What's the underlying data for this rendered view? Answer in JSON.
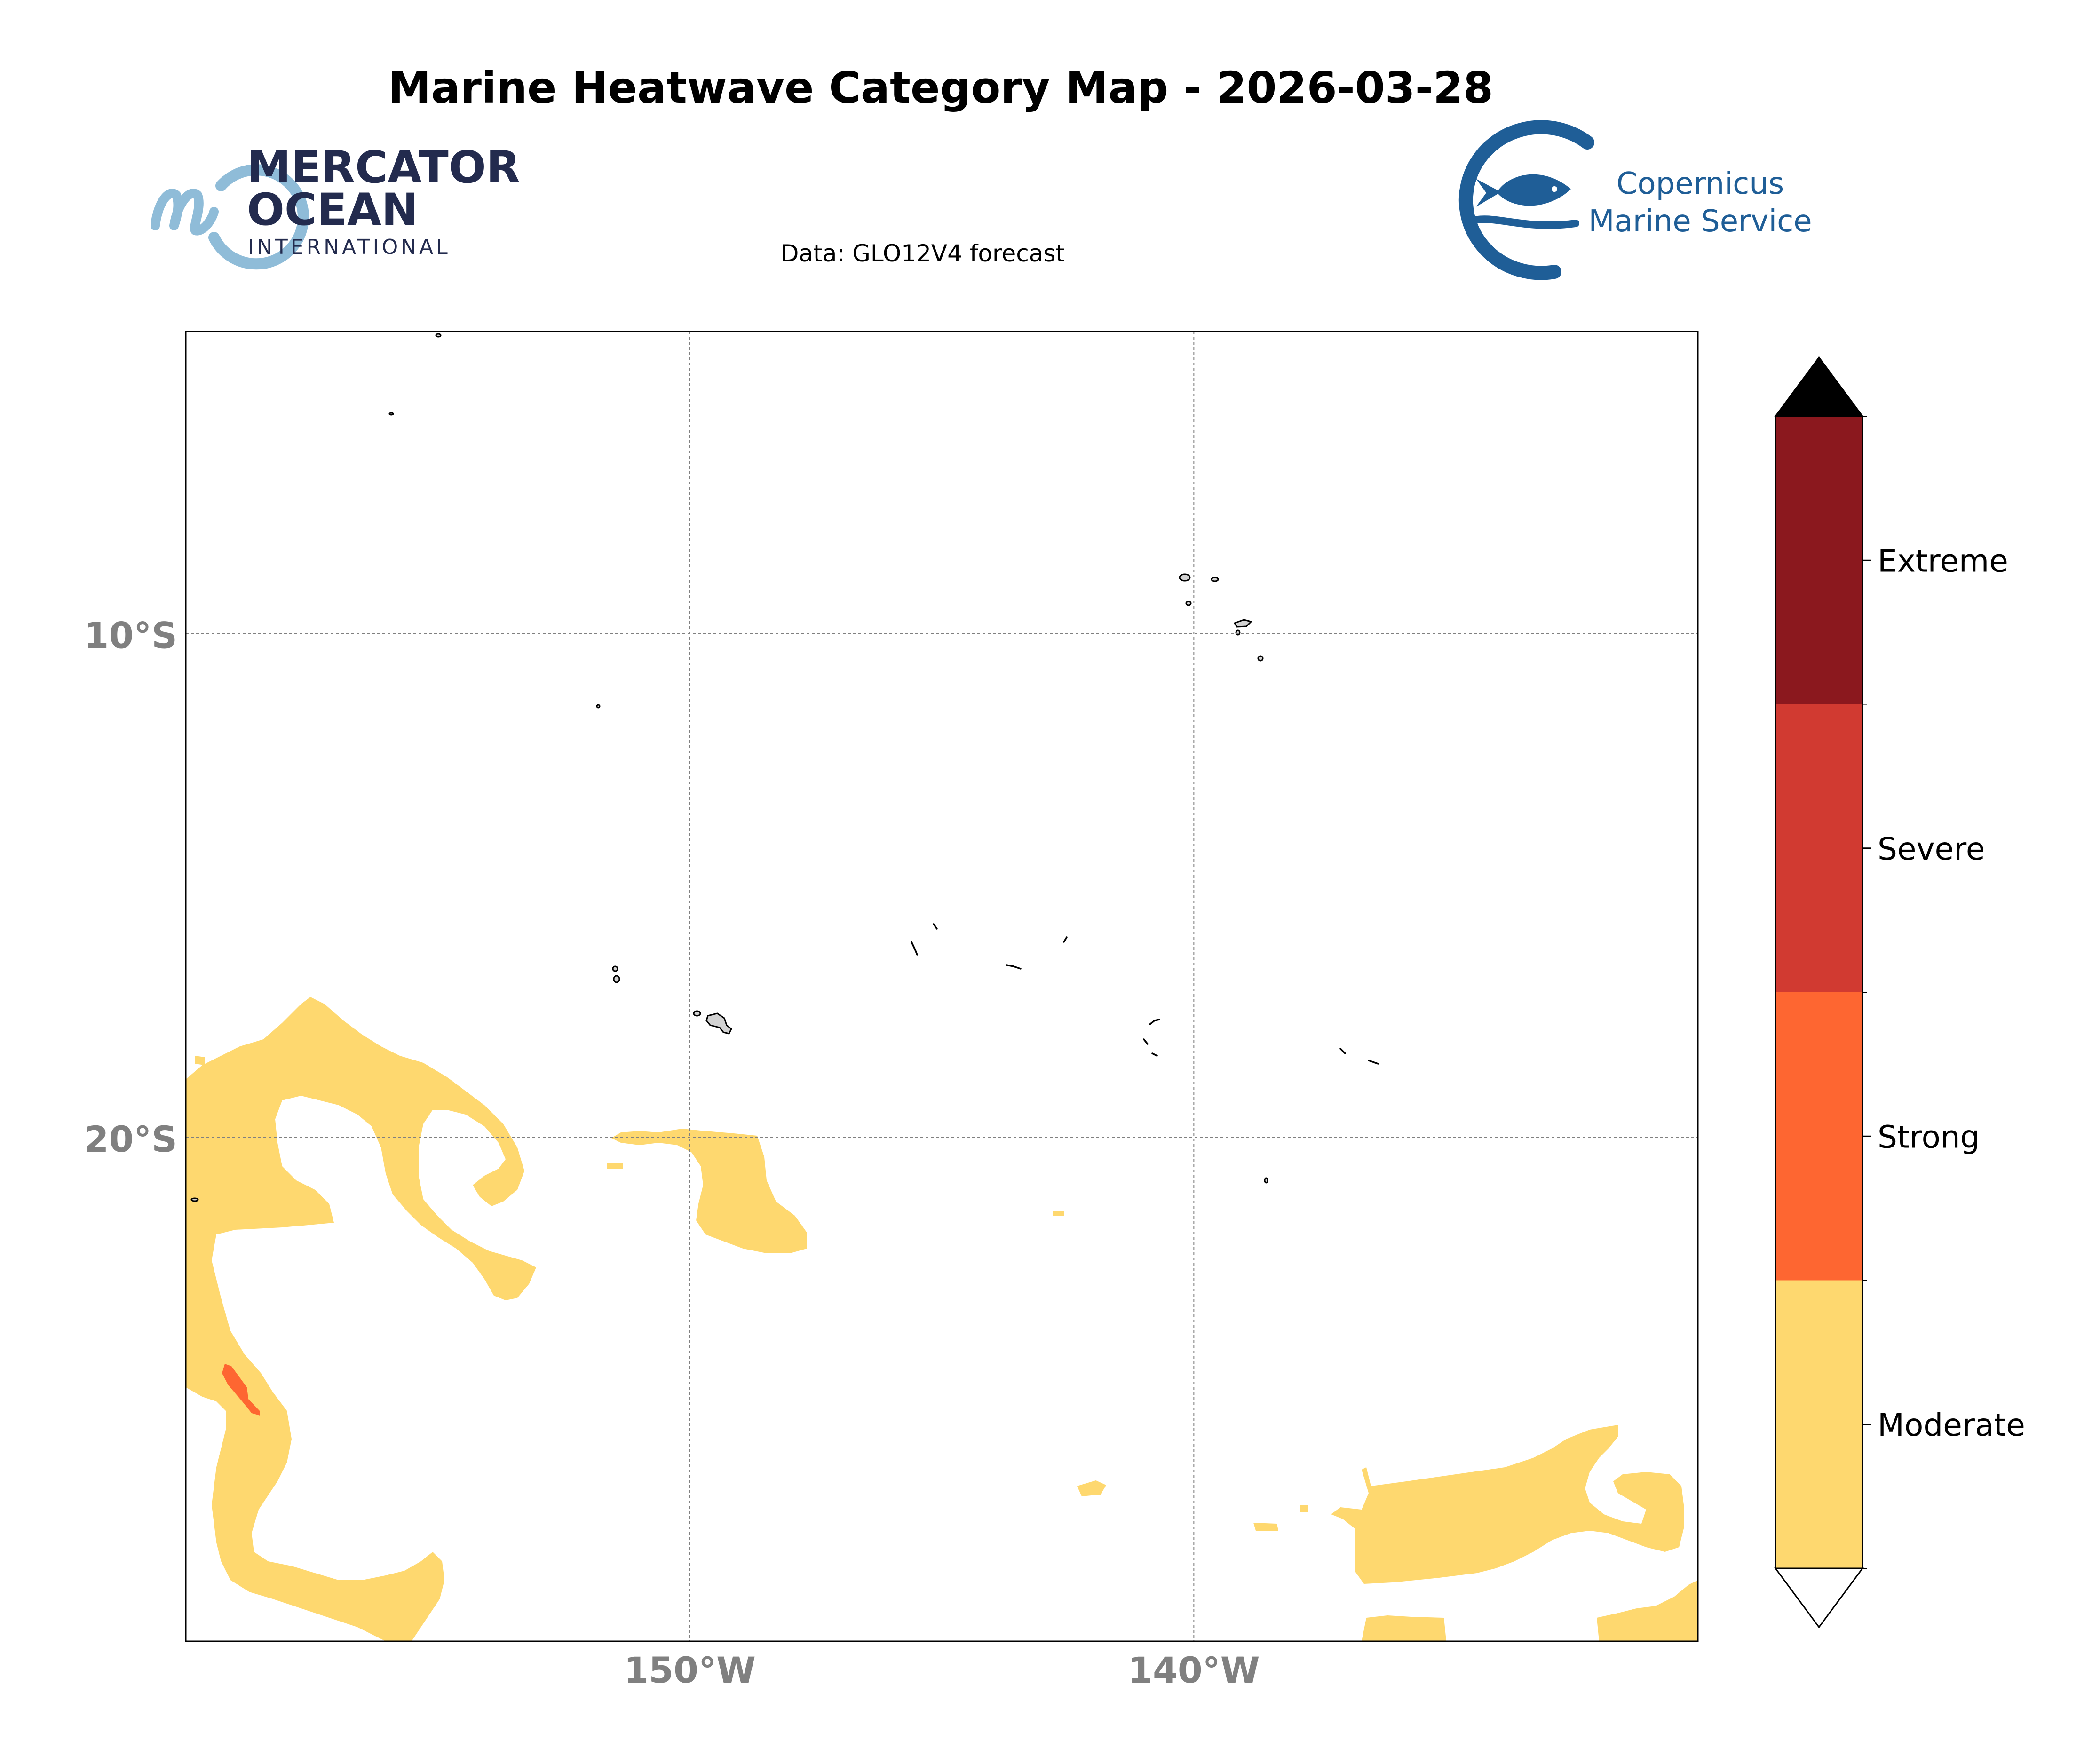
{
  "title": "Marine Heatwave Category Map - 2026-03-28",
  "subtitle": "Data: GLO12V4 forecast",
  "logos": {
    "left": {
      "line1": "MERCATOR",
      "line2": "OCEAN",
      "line3": "INTERNATIONAL"
    },
    "right": {
      "line1": "Copernicus",
      "line2": "Marine Service"
    }
  },
  "map": {
    "lon_range": [
      -160,
      -130
    ],
    "lat_range": [
      -30,
      -4
    ],
    "lat_ticks": [
      {
        "value": -10,
        "label": "10°S"
      },
      {
        "value": -20,
        "label": "20°S"
      }
    ],
    "lon_ticks": [
      {
        "value": -150,
        "label": "150°W"
      },
      {
        "value": -140,
        "label": "140°W"
      }
    ],
    "gridlines": true,
    "tick_label_color": "#808080"
  },
  "colorbar": {
    "categories": [
      {
        "label": "Moderate",
        "color": "#FED86F"
      },
      {
        "label": "Strong",
        "color": "#FE6631"
      },
      {
        "label": "Severe",
        "color": "#D13A31"
      },
      {
        "label": "Extreme",
        "color": "#8B181E"
      }
    ],
    "extend_max_color": "#000000",
    "extend_min_color": "#FFFFFF"
  },
  "colors": {
    "moderate": "#FED86F",
    "strong": "#FE6631",
    "land": "#D3D3D3",
    "mercator_dark": "#232B4E",
    "mercator_light": "#8FBCD8",
    "copernicus_blue": "#1F5E97"
  }
}
